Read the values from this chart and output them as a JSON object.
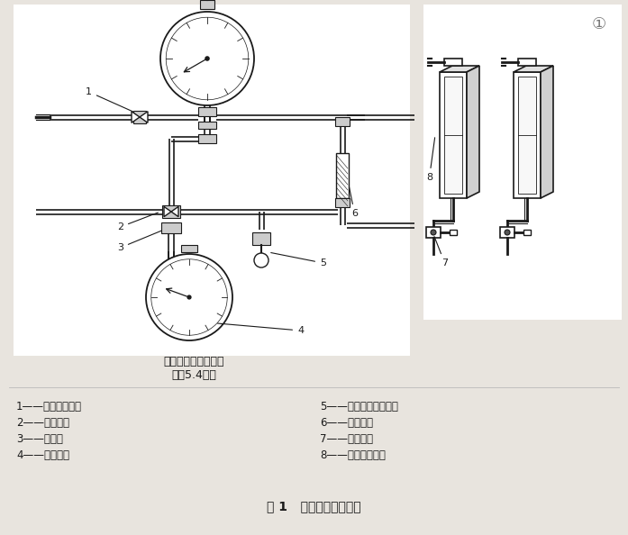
{
  "title": "图 1   氧指数设备示意图",
  "subtitle_left": "另一种气流测量装置",
  "subtitle_left2": "（见5.4注）",
  "legend_items_left": [
    "1——气体预混点；",
    "2——截止阀；",
    "3——接口；",
    "4——压力表；"
  ],
  "legend_items_right": [
    "5——精密压力调节器；",
    "6——过滤器；",
    "7——针形阀；",
    "8——气体流量计。"
  ],
  "bg_color": "#e8e4de",
  "line_color": "#1a1a1a",
  "pipe_color": "#111111",
  "font_size_legend": 8.5,
  "font_size_title": 10,
  "font_size_sub": 8
}
